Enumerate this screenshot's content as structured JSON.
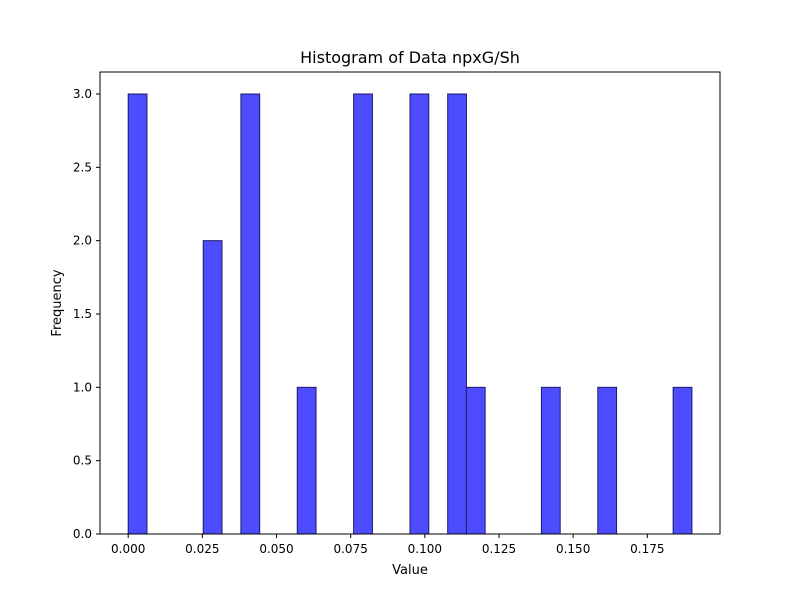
{
  "chart_data": {
    "type": "bar",
    "title": "Histogram of Data npxG/Sh",
    "xlabel": "Value",
    "ylabel": "Frequency",
    "xlim": [
      -0.0095,
      0.1995
    ],
    "ylim": [
      0,
      3.15
    ],
    "bin_width": 0.00633,
    "bins": [
      {
        "start": 0.0,
        "count": 3
      },
      {
        "start": 0.0253,
        "count": 2
      },
      {
        "start": 0.038,
        "count": 3
      },
      {
        "start": 0.057,
        "count": 1
      },
      {
        "start": 0.076,
        "count": 3
      },
      {
        "start": 0.095,
        "count": 3
      },
      {
        "start": 0.1077,
        "count": 3
      },
      {
        "start": 0.114,
        "count": 1
      },
      {
        "start": 0.1393,
        "count": 1
      },
      {
        "start": 0.1583,
        "count": 1
      },
      {
        "start": 0.1837,
        "count": 1
      }
    ],
    "x_ticks": [
      "0.000",
      "0.025",
      "0.050",
      "0.075",
      "0.100",
      "0.125",
      "0.150",
      "0.175"
    ],
    "x_tick_values": [
      0,
      0.025,
      0.05,
      0.075,
      0.1,
      0.125,
      0.15,
      0.175
    ],
    "y_ticks": [
      "0.0",
      "0.5",
      "1.0",
      "1.5",
      "2.0",
      "2.5",
      "3.0"
    ],
    "y_tick_values": [
      0,
      0.5,
      1,
      1.5,
      2,
      2.5,
      3
    ],
    "bar_color": "#4d4dff",
    "edge_color": "#1a1a66",
    "grid": false
  }
}
